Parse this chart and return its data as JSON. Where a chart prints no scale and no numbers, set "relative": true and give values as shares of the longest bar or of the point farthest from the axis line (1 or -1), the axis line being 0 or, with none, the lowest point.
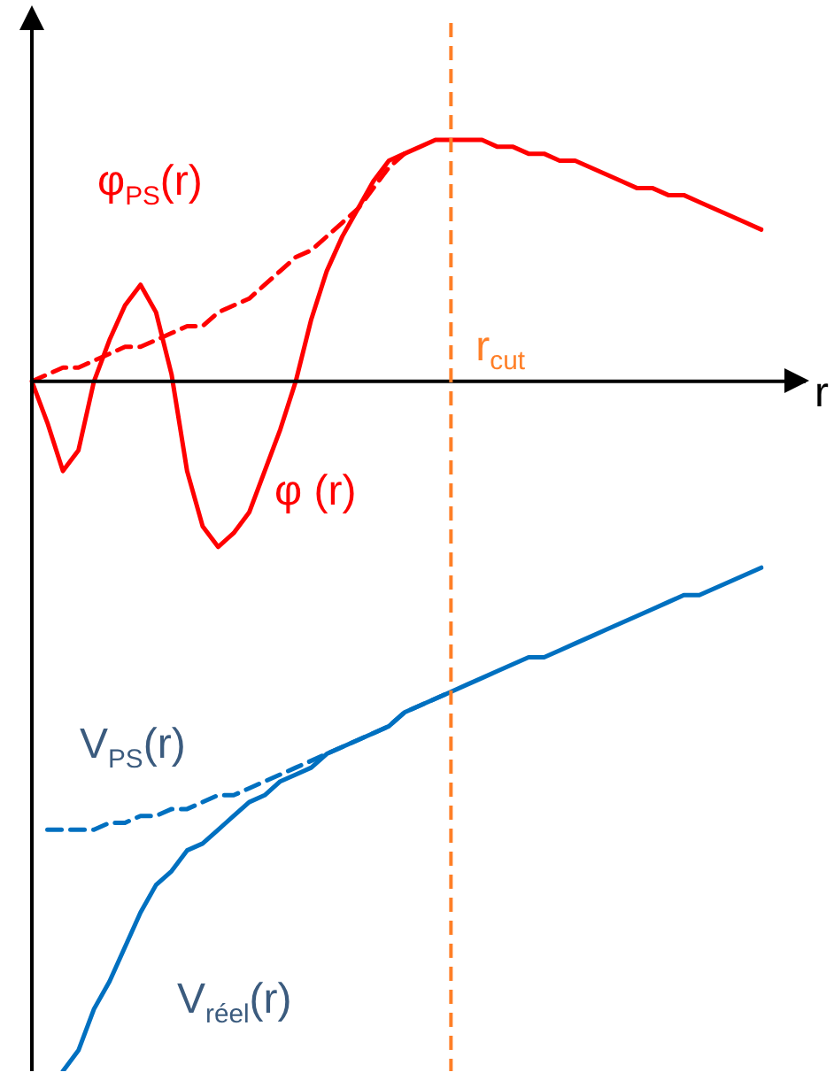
{
  "chart_data": {
    "type": "line",
    "relative": true,
    "xlabel": "r",
    "legend": false,
    "marker": "none",
    "categories": [
      null,
      null,
      null,
      null,
      null,
      null,
      null,
      null,
      null,
      null,
      null,
      null,
      null,
      null,
      null,
      null,
      null,
      null,
      null,
      null,
      null,
      null,
      null,
      null,
      null,
      null,
      null,
      null,
      null,
      null,
      null,
      null,
      null,
      null,
      null,
      null,
      null,
      null,
      null,
      null,
      null,
      null,
      null,
      null,
      null,
      null,
      null,
      null
    ],
    "series": [
      {
        "name": "φ$_{PS}$(r)",
        "color": "#ff0000",
        "line_style": "dashed",
        "values": [
          0,
          0.01,
          0.02,
          0.02,
          0.03,
          0.04,
          0.05,
          0.05,
          0.06,
          0.07,
          0.08,
          0.08,
          0.1,
          0.11,
          0.12,
          0.14,
          0.16,
          0.18,
          0.19,
          0.21,
          0.23,
          0.25,
          0.28,
          0.31,
          0.33,
          null,
          null,
          null,
          null,
          null,
          null,
          null,
          null,
          null,
          null,
          null,
          null,
          null,
          null,
          null,
          null,
          null,
          null,
          null,
          null,
          null,
          null,
          null
        ]
      },
      {
        "name": "φ (r)",
        "color": "#ff0000",
        "line_style": "solid",
        "values": [
          0,
          -0.06,
          -0.13,
          -0.1,
          0,
          0.06,
          0.11,
          0.14,
          0.1,
          0.01,
          -0.13,
          -0.21,
          -0.24,
          -0.22,
          -0.19,
          -0.13,
          -0.07,
          0,
          0.09,
          0.16,
          0.21,
          0.25,
          0.29,
          0.32,
          0.33,
          0.34,
          0.35,
          0.35,
          0.35,
          0.35,
          0.34,
          0.34,
          0.33,
          0.33,
          0.32,
          0.32,
          0.31,
          0.3,
          0.29,
          0.28,
          0.28,
          0.27,
          0.27,
          0.26,
          0.25,
          0.24,
          0.23,
          0.22
        ]
      },
      {
        "name": "V$_{PS}$(r)",
        "color": "#0070c0",
        "line_style": "dashed",
        "values": [
          null,
          -0.65,
          -0.65,
          -0.65,
          -0.65,
          -0.64,
          -0.64,
          -0.63,
          -0.63,
          -0.62,
          -0.62,
          -0.61,
          -0.6,
          -0.6,
          -0.59,
          -0.58,
          -0.57,
          -0.56,
          -0.55,
          -0.54,
          -0.53,
          -0.52,
          -0.51,
          -0.5,
          -0.48,
          -0.47,
          -0.46,
          -0.45,
          null,
          null,
          null,
          null,
          null,
          null,
          null,
          null,
          null,
          null,
          null,
          null,
          null,
          null,
          null,
          null,
          null,
          null,
          null,
          null
        ]
      },
      {
        "name": "V$_{réel}$(r)",
        "color": "#0070c0",
        "line_style": "solid",
        "values": [
          null,
          null,
          -1,
          -0.97,
          -0.91,
          -0.87,
          -0.82,
          -0.77,
          -0.73,
          -0.71,
          -0.68,
          -0.67,
          -0.65,
          -0.63,
          -0.61,
          -0.6,
          -0.58,
          -0.57,
          -0.56,
          -0.54,
          -0.53,
          -0.52,
          -0.51,
          -0.5,
          -0.48,
          -0.47,
          -0.46,
          -0.45,
          -0.44,
          -0.43,
          -0.42,
          -0.41,
          -0.4,
          -0.4,
          -0.39,
          -0.38,
          -0.37,
          -0.36,
          -0.35,
          -0.34,
          -0.33,
          -0.32,
          -0.31,
          -0.31,
          -0.3,
          -0.29,
          -0.28,
          -0.27
        ]
      }
    ],
    "ref_lines": [
      {
        "axis": "x",
        "label": "r$_{cut}$",
        "color": "#ff7f27",
        "line_style": "dashed"
      }
    ]
  }
}
